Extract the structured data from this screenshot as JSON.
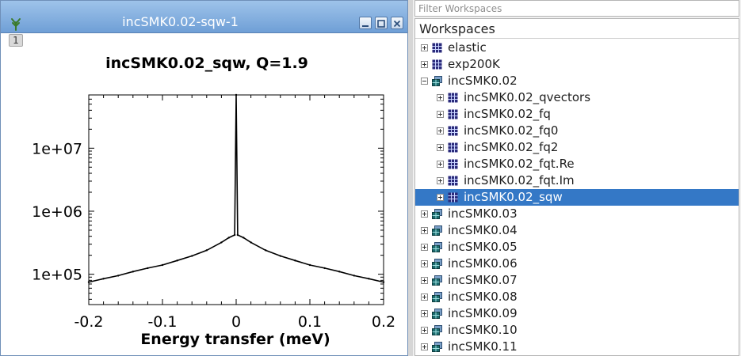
{
  "plot_window": {
    "title": "incSMK0.02-sqw-1",
    "layer_label": "1"
  },
  "chart_data": {
    "type": "line",
    "title": "incSMK0.02_sqw, Q=1.9",
    "xlabel": "Energy transfer (meV)",
    "ylabel": "",
    "xlim": [
      -0.2,
      0.2
    ],
    "ylim": [
      33000,
      70000000
    ],
    "y_scale": "log",
    "x_ticks": [
      -0.2,
      -0.1,
      0,
      0.1,
      0.2
    ],
    "x_tick_labels": [
      "-0.2",
      "-0.1",
      "0",
      "0.1",
      "0.2"
    ],
    "y_ticks": [
      100000,
      1000000,
      10000000
    ],
    "y_tick_labels": [
      "1e+05",
      "1e+06",
      "1e+07"
    ],
    "grid": false,
    "series": [
      {
        "x": [
          -0.2,
          -0.18,
          -0.16,
          -0.14,
          -0.12,
          -0.1,
          -0.08,
          -0.06,
          -0.04,
          -0.02,
          -0.01,
          -0.002,
          0,
          0.002,
          0.01,
          0.02,
          0.04,
          0.06,
          0.08,
          0.1,
          0.12,
          0.14,
          0.16,
          0.18,
          0.2
        ],
        "y": [
          75000,
          85000,
          95000,
          110000,
          125000,
          140000,
          165000,
          195000,
          240000,
          320000,
          380000,
          420000,
          70000000,
          420000,
          380000,
          320000,
          240000,
          195000,
          165000,
          140000,
          125000,
          110000,
          95000,
          85000,
          75000
        ],
        "color": "#000000"
      }
    ]
  },
  "workspaces": {
    "filter_placeholder": "Filter Workspaces",
    "header": "Workspaces",
    "rows": [
      {
        "label": "elastic",
        "level": 0,
        "expander": "plus",
        "icon": "matrix-workspace-icon"
      },
      {
        "label": "exp200K",
        "level": 0,
        "expander": "plus",
        "icon": "matrix-workspace-icon"
      },
      {
        "label": "incSMK0.02",
        "level": 0,
        "expander": "minus",
        "icon": "workspace-group-icon"
      },
      {
        "label": "incSMK0.02_qvectors",
        "level": 1,
        "expander": "plus",
        "icon": "matrix-workspace-icon"
      },
      {
        "label": "incSMK0.02_fq",
        "level": 1,
        "expander": "plus",
        "icon": "matrix-workspace-icon"
      },
      {
        "label": "incSMK0.02_fq0",
        "level": 1,
        "expander": "plus",
        "icon": "matrix-workspace-icon"
      },
      {
        "label": "incSMK0.02_fq2",
        "level": 1,
        "expander": "plus",
        "icon": "matrix-workspace-icon"
      },
      {
        "label": "incSMK0.02_fqt.Re",
        "level": 1,
        "expander": "plus",
        "icon": "matrix-workspace-icon"
      },
      {
        "label": "incSMK0.02_fqt.Im",
        "level": 1,
        "expander": "plus",
        "icon": "matrix-workspace-icon"
      },
      {
        "label": "incSMK0.02_sqw",
        "level": 1,
        "expander": "plus",
        "icon": "matrix-workspace-icon",
        "selected": true
      },
      {
        "label": "incSMK0.03",
        "level": 0,
        "expander": "plus",
        "icon": "workspace-group-icon"
      },
      {
        "label": "incSMK0.04",
        "level": 0,
        "expander": "plus",
        "icon": "workspace-group-icon"
      },
      {
        "label": "incSMK0.05",
        "level": 0,
        "expander": "plus",
        "icon": "workspace-group-icon"
      },
      {
        "label": "incSMK0.06",
        "level": 0,
        "expander": "plus",
        "icon": "workspace-group-icon"
      },
      {
        "label": "incSMK0.07",
        "level": 0,
        "expander": "plus",
        "icon": "workspace-group-icon"
      },
      {
        "label": "incSMK0.08",
        "level": 0,
        "expander": "plus",
        "icon": "workspace-group-icon"
      },
      {
        "label": "incSMK0.09",
        "level": 0,
        "expander": "plus",
        "icon": "workspace-group-icon"
      },
      {
        "label": "incSMK0.10",
        "level": 0,
        "expander": "plus",
        "icon": "workspace-group-icon"
      },
      {
        "label": "incSMK0.11",
        "level": 0,
        "expander": "plus",
        "icon": "workspace-group-icon"
      }
    ]
  }
}
